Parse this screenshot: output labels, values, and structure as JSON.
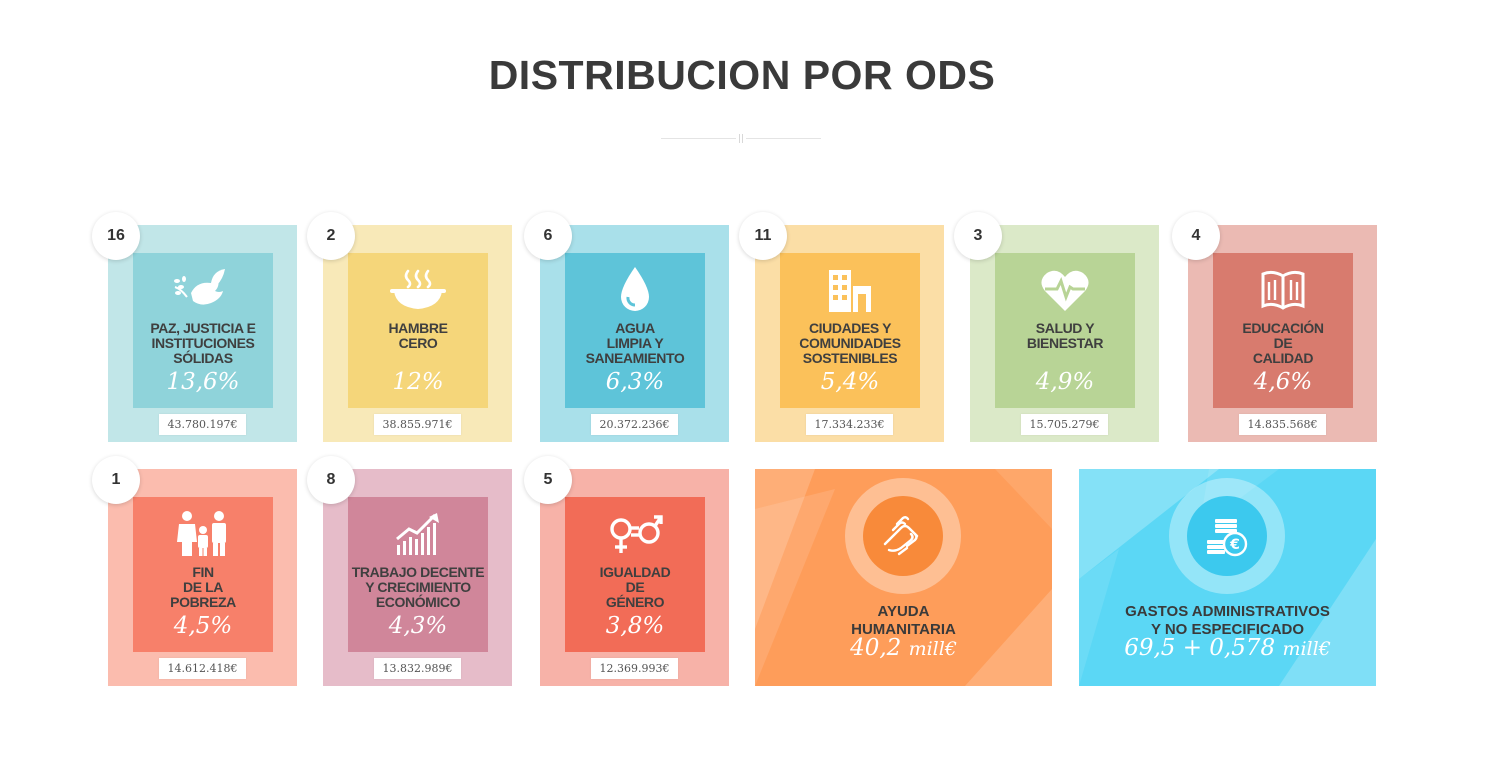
{
  "page": {
    "title": "DISTRIBUCION POR ODS"
  },
  "ods_cards": [
    {
      "number": "16",
      "label_lines": [
        "PAZ, JUSTICIA E",
        "INSTITUCIONES",
        "SÓLIDAS"
      ],
      "percent": "13,6%",
      "amount": "43.780.197€",
      "icon": "dove-icon",
      "bg": "#c1e6e8",
      "inner": "#8fd3da"
    },
    {
      "number": "2",
      "label_lines": [
        "HAMBRE",
        "CERO"
      ],
      "percent": "12%",
      "amount": "38.855.971€",
      "icon": "bowl-icon",
      "bg": "#f8e9b8",
      "inner": "#f5d67a"
    },
    {
      "number": "6",
      "label_lines": [
        "AGUA",
        "LIMPIA Y",
        "SANEAMIENTO"
      ],
      "percent": "6,3%",
      "amount": "20.372.236€",
      "icon": "water-drop-icon",
      "bg": "#a9e0ea",
      "inner": "#5ec4d9"
    },
    {
      "number": "11",
      "label_lines": [
        "CIUDADES Y",
        "COMUNIDADES",
        "SOSTENIBLES"
      ],
      "percent": "5,4%",
      "amount": "17.334.233€",
      "icon": "buildings-icon",
      "bg": "#fbdea6",
      "inner": "#fbc15a"
    },
    {
      "number": "3",
      "label_lines": [
        "SALUD Y",
        "BIENESTAR"
      ],
      "percent": "4,9%",
      "amount": "15.705.279€",
      "icon": "heart-pulse-icon",
      "bg": "#dbe9c8",
      "inner": "#b8d496"
    },
    {
      "number": "4",
      "label_lines": [
        "EDUCACIÓN",
        "DE",
        "CALIDAD"
      ],
      "percent": "4,6%",
      "amount": "14.835.568€",
      "icon": "book-icon",
      "bg": "#ebbab3",
      "inner": "#d87b6e"
    },
    {
      "number": "1",
      "label_lines": [
        "FIN",
        "DE LA",
        "POBREZA"
      ],
      "percent": "4,5%",
      "amount": "14.612.418€",
      "icon": "family-icon",
      "bg": "#fbbcae",
      "inner": "#f7806a"
    },
    {
      "number": "8",
      "label_lines": [
        "TRABAJO DECENTE",
        "Y CRECIMIENTO",
        "ECONÓMICO"
      ],
      "percent": "4,3%",
      "amount": "13.832.989€",
      "icon": "growth-chart-icon",
      "bg": "#e6bcc9",
      "inner": "#d0869a"
    },
    {
      "number": "5",
      "label_lines": [
        "IGUALDAD",
        "DE",
        "GÉNERO"
      ],
      "percent": "3,8%",
      "amount": "12.369.993€",
      "icon": "gender-equality-icon",
      "bg": "#f7b2a8",
      "inner": "#f26c57"
    }
  ],
  "big_cards": [
    {
      "label_lines": [
        "AYUDA",
        "HUMANITARIA"
      ],
      "value": "40,2",
      "unit": "mill€",
      "icon": "helping-hands-icon",
      "bg": "#fe9d5a"
    },
    {
      "label_lines": [
        "GASTOS ADMINISTRATIVOS",
        "Y NO ESPECIFICADO"
      ],
      "value": "69,5 + 0,578",
      "unit": "mill€",
      "icon": "euro-coins-icon",
      "bg": "#5bd7f5"
    }
  ]
}
